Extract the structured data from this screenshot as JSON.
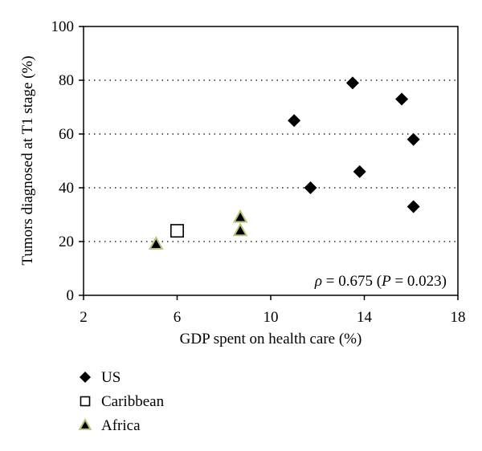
{
  "chart_data": {
    "type": "scatter",
    "xlabel": "GDP spent on health care (%)",
    "ylabel": "Tumors diagnosed at T1 stage (%)",
    "xlim": [
      2,
      18
    ],
    "ylim": [
      0,
      100
    ],
    "xticks": [
      2,
      6,
      10,
      14,
      18
    ],
    "yticks": [
      0,
      20,
      40,
      60,
      80,
      100
    ],
    "grid": "horizontal dotted",
    "legend_position": "bottom-left, below plot",
    "annotation": {
      "rho": "ρ",
      "eq": " = 0.675 (",
      "p": "P",
      "rest": " = 0.023)"
    },
    "series": [
      {
        "name": "US",
        "marker": "diamond",
        "color": "#000000",
        "points": [
          {
            "x": 11.0,
            "y": 65
          },
          {
            "x": 11.7,
            "y": 40
          },
          {
            "x": 13.5,
            "y": 79
          },
          {
            "x": 13.8,
            "y": 46
          },
          {
            "x": 15.6,
            "y": 73
          },
          {
            "x": 16.1,
            "y": 58
          },
          {
            "x": 16.1,
            "y": 33
          }
        ]
      },
      {
        "name": "Caribbean",
        "marker": "square-open",
        "color": "#000000",
        "points": [
          {
            "x": 6.0,
            "y": 24
          }
        ]
      },
      {
        "name": "Africa",
        "marker": "triangle",
        "color": "#000000",
        "edge_color": "#b5c47a",
        "points": [
          {
            "x": 5.1,
            "y": 19
          },
          {
            "x": 8.7,
            "y": 29
          },
          {
            "x": 8.7,
            "y": 24
          }
        ]
      }
    ]
  }
}
